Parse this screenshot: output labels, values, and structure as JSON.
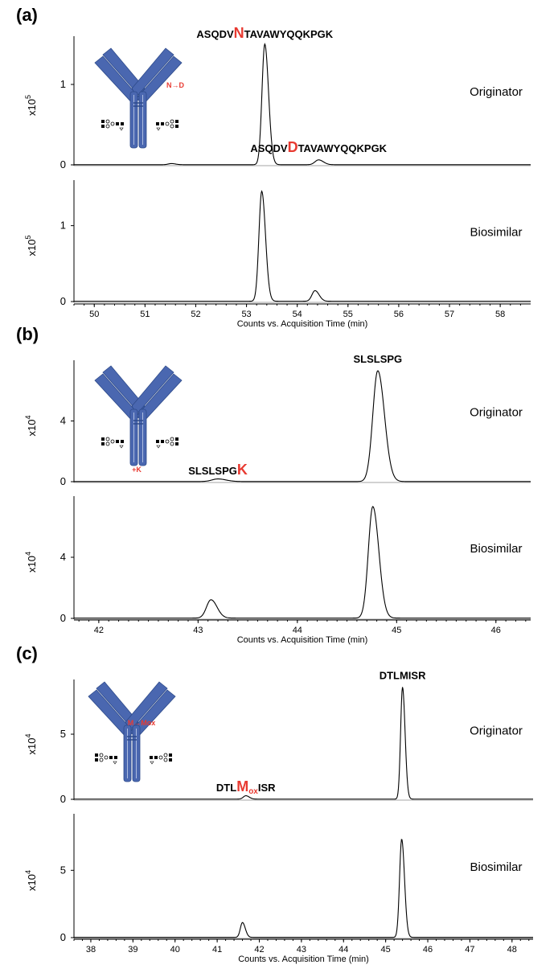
{
  "chart_data": [
    {
      "type": "line",
      "panel_label": "(a)",
      "xlabel": "Counts vs. Acquisition Time (min)",
      "x_range": [
        49.6,
        58.6
      ],
      "x_ticks": [
        50,
        51,
        52,
        53,
        54,
        55,
        56,
        57,
        58
      ],
      "modification": "N→D",
      "series": [
        {
          "name": "Originator",
          "ylabel_base": "x10",
          "ylabel_exp": "5",
          "y_range": [
            0,
            160000
          ],
          "y_ticks": [
            0,
            1
          ],
          "y_tick_scale": 100000,
          "baseline": 200,
          "peaks": [
            {
              "x": 51.52,
              "height": 1400,
              "sigma": 0.06
            },
            {
              "x": 53.36,
              "height": 150000,
              "sigma": 0.055
            },
            {
              "x": 54.42,
              "height": 6000,
              "sigma": 0.07
            }
          ],
          "annotations": [
            {
              "x": 53.36,
              "y_value": 150000,
              "pre": "ASQDV",
              "mod": "N",
              "sub": "",
              "post": "TAVAWYQQKPGK",
              "dy": -8
            },
            {
              "x": 54.42,
              "y_value": 6000,
              "pre": "ASQDV",
              "mod": "D",
              "sub": "",
              "post": "TAVAWYQQKPGK",
              "dy": -10
            }
          ]
        },
        {
          "name": "Biosimilar",
          "ylabel_base": "x10",
          "ylabel_exp": "5",
          "y_range": [
            0,
            160000
          ],
          "y_ticks": [
            0,
            1
          ],
          "y_tick_scale": 100000,
          "baseline": 400,
          "peaks": [
            {
              "x": 53.3,
              "height": 145000,
              "sigma": 0.055
            },
            {
              "x": 54.35,
              "height": 14000,
              "sigma": 0.06
            }
          ],
          "annotations": []
        }
      ]
    },
    {
      "type": "line",
      "panel_label": "(b)",
      "xlabel": "Counts vs. Acquisition Time (min)",
      "x_range": [
        41.75,
        46.35
      ],
      "x_ticks": [
        42,
        43,
        44,
        45,
        46
      ],
      "modification": "+K",
      "series": [
        {
          "name": "Originator",
          "ylabel_base": "x10",
          "ylabel_exp": "4",
          "y_range": [
            0,
            80000
          ],
          "y_ticks": [
            0,
            4
          ],
          "y_tick_scale": 10000,
          "baseline": 100,
          "peaks": [
            {
              "x": 43.2,
              "height": 1700,
              "sigma": 0.06
            },
            {
              "x": 44.81,
              "height": 73000,
              "sigma": 0.05
            }
          ],
          "annotations": [
            {
              "x": 44.81,
              "y_value": 73000,
              "pre": "SLSLSPG",
              "mod": "",
              "sub": "",
              "post": "",
              "dy": -10
            },
            {
              "x": 43.2,
              "y_value": 1700,
              "pre": "SLSLSPG",
              "mod": "K",
              "sub": "",
              "post": "",
              "dy": -6
            }
          ]
        },
        {
          "name": "Biosimilar",
          "ylabel_base": "x10",
          "ylabel_exp": "4",
          "y_range": [
            0,
            80000
          ],
          "y_ticks": [
            0,
            4
          ],
          "y_tick_scale": 10000,
          "baseline": 200,
          "peaks": [
            {
              "x": 43.13,
              "height": 12000,
              "sigma": 0.045
            },
            {
              "x": 44.76,
              "height": 73000,
              "sigma": 0.045
            }
          ],
          "annotations": []
        }
      ]
    },
    {
      "type": "line",
      "panel_label": "(c)",
      "xlabel": "Counts vs. Acquisition Time (min)",
      "x_range": [
        37.6,
        48.5
      ],
      "x_ticks": [
        38,
        39,
        40,
        41,
        42,
        43,
        44,
        45,
        46,
        47,
        48
      ],
      "modification": "M→Mox",
      "series": [
        {
          "name": "Originator",
          "ylabel_base": "x10",
          "ylabel_exp": "4",
          "y_range": [
            0,
            92000
          ],
          "y_ticks": [
            0,
            5
          ],
          "y_tick_scale": 10000,
          "baseline": 150,
          "peaks": [
            {
              "x": 41.68,
              "height": 2600,
              "sigma": 0.06
            },
            {
              "x": 45.4,
              "height": 86000,
              "sigma": 0.045
            }
          ],
          "annotations": [
            {
              "x": 45.4,
              "y_value": 86000,
              "pre": "DTLMISR",
              "mod": "",
              "sub": "",
              "post": "",
              "dy": -10
            },
            {
              "x": 41.68,
              "y_value": 2600,
              "pre": "DTL",
              "mod": "M",
              "sub": "ox",
              "post": "ISR",
              "dy": -6
            }
          ]
        },
        {
          "name": "Biosimilar",
          "ylabel_base": "x10",
          "ylabel_exp": "4",
          "y_range": [
            0,
            92000
          ],
          "y_ticks": [
            0,
            5
          ],
          "y_tick_scale": 10000,
          "baseline": 200,
          "peaks": [
            {
              "x": 41.6,
              "height": 11000,
              "sigma": 0.05
            },
            {
              "x": 45.38,
              "height": 73000,
              "sigma": 0.05
            }
          ],
          "annotations": []
        }
      ]
    }
  ]
}
